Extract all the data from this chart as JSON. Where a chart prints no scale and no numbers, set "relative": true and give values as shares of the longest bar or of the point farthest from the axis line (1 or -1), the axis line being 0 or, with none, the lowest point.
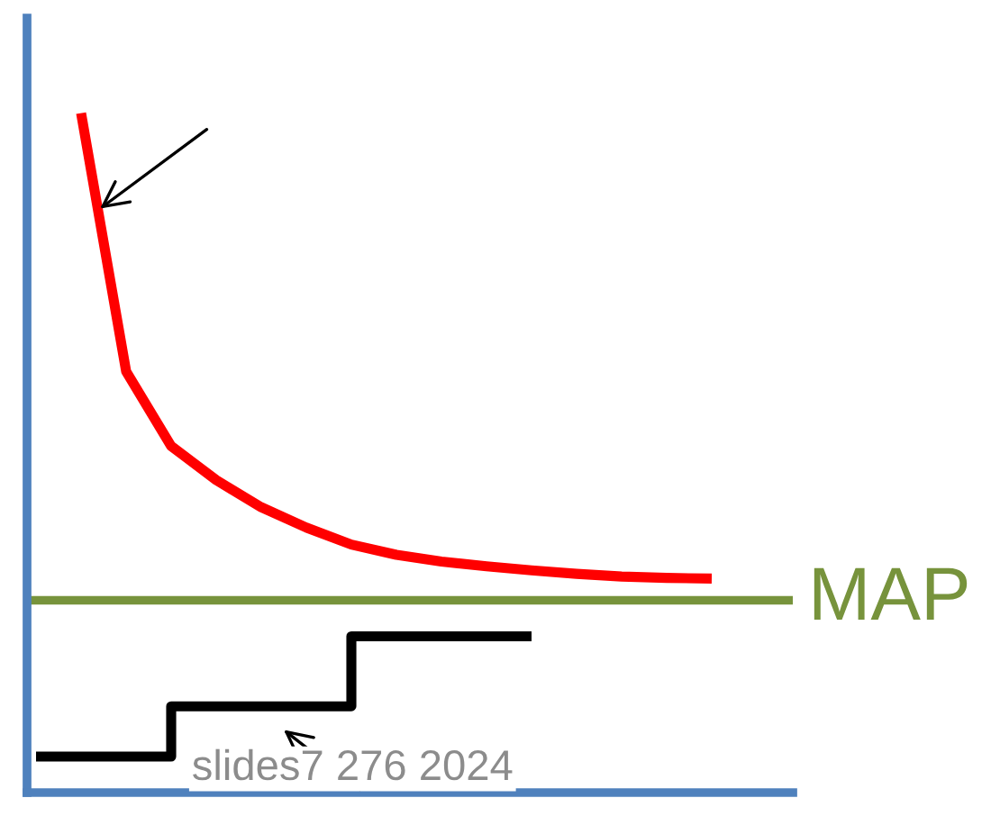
{
  "chart_data": {
    "type": "line",
    "relative": true,
    "categories": [
      null,
      null,
      null,
      null,
      null,
      null,
      null,
      null,
      null,
      null,
      null,
      null,
      null,
      null,
      null,
      null
    ],
    "series": [
      {
        "color": "#ff0000",
        "values": [
          null,
          1.0,
          0.62,
          0.51,
          0.46,
          0.42,
          0.39,
          0.365,
          0.35,
          0.34,
          0.333,
          0.327,
          0.322,
          0.318,
          0.316,
          0.315
        ]
      },
      {
        "type": "step",
        "color": "#000000",
        "values": [
          0.053,
          0.053,
          0.053,
          0.127,
          0.127,
          0.127,
          0.127,
          0.23,
          0.23,
          0.23,
          0.23,
          0.23,
          null,
          null,
          null,
          null
        ]
      }
    ],
    "ref_lines": [
      {
        "axis": "y",
        "value": 0.283,
        "label": "MAP",
        "color": "#77933c"
      }
    ],
    "annotations": [
      "slides7 276 2024"
    ],
    "legend": false,
    "tick_labels": false
  }
}
